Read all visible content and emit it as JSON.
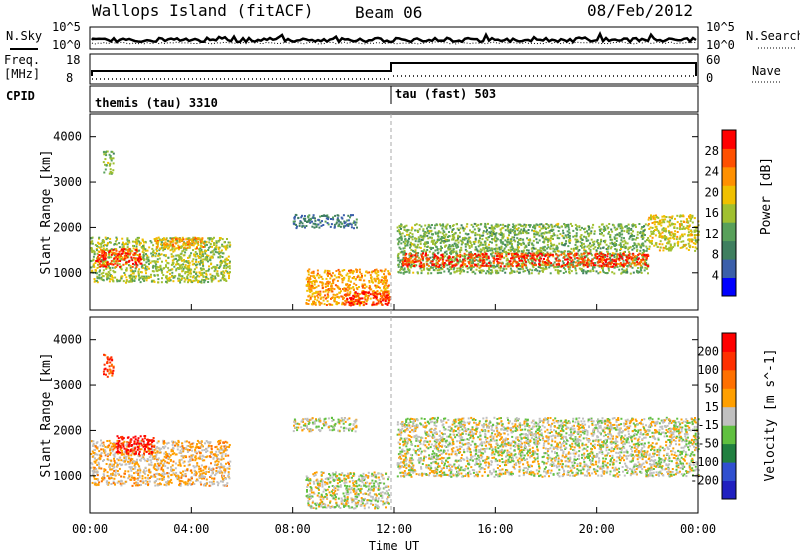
{
  "header": {
    "station": "Wallops Island (fitACF)",
    "beam": "Beam 06",
    "date": "08/Feb/2012"
  },
  "strip_labels": {
    "nsky": "N.Sky",
    "nsearch": "N.Search",
    "freq_line1": "Freq.",
    "freq_line2": "[MHz]",
    "nave": "Nave",
    "cpid": "CPID",
    "sky_ticks": [
      "10^5",
      "10^0"
    ],
    "search_ticks": [
      "10^5",
      "10^0"
    ],
    "freq_ticks": [
      "18",
      "8"
    ],
    "nave_ticks": [
      "60",
      "0"
    ]
  },
  "cpid_modes": [
    {
      "label": "themis (tau) 3310",
      "start_hour": 0
    },
    {
      "label": "tau (fast) 503",
      "start_hour": 12
    }
  ],
  "colors": {
    "power": [
      "#0000ff",
      "#3b5faa",
      "#3f7f5f",
      "#58a05a",
      "#a0c030",
      "#f0c000",
      "#ff9000",
      "#ff5000",
      "#ff0000"
    ],
    "velocity": [
      "#2020c0",
      "#3050d0",
      "#208040",
      "#60c040",
      "#c0c0c0",
      "#ff9f00",
      "#ff7000",
      "#ff3000",
      "#ff0000"
    ]
  },
  "chart_data": [
    {
      "type": "heatmap",
      "id": "power",
      "xlabel": "",
      "ylabel": "Slant Range [km]",
      "xlim": [
        0,
        24
      ],
      "ylim": [
        180,
        4500
      ],
      "yticks": [
        1000,
        2000,
        3000,
        4000
      ],
      "colorbar": {
        "label": "Power [dB]",
        "ticks": [
          4,
          8,
          12,
          16,
          20,
          24,
          28
        ],
        "range": [
          0,
          32
        ]
      },
      "regions": [
        {
          "t0": 0.0,
          "t1": 5.5,
          "r0": 800,
          "r1": 1800,
          "value": 16
        },
        {
          "t0": 0.2,
          "t1": 2.0,
          "r0": 1150,
          "r1": 1550,
          "value": 28
        },
        {
          "t0": 2.5,
          "t1": 4.5,
          "r0": 1550,
          "r1": 1800,
          "value": 22
        },
        {
          "t0": 0.5,
          "t1": 0.9,
          "r0": 3200,
          "r1": 3700,
          "value": 14
        },
        {
          "t0": 8.0,
          "t1": 10.5,
          "r0": 2000,
          "r1": 2300,
          "value": 8
        },
        {
          "t0": 8.5,
          "t1": 11.8,
          "r0": 300,
          "r1": 1100,
          "value": 22
        },
        {
          "t0": 10.0,
          "t1": 11.8,
          "r0": 300,
          "r1": 600,
          "value": 30
        },
        {
          "t0": 12.1,
          "t1": 22.0,
          "r0": 1000,
          "r1": 2100,
          "value": 14
        },
        {
          "t0": 12.3,
          "t1": 22.0,
          "r0": 1150,
          "r1": 1450,
          "value": 28
        },
        {
          "t0": 22.0,
          "t1": 24.0,
          "r0": 1500,
          "r1": 2300,
          "value": 18
        }
      ]
    },
    {
      "type": "heatmap",
      "id": "velocity",
      "xlabel": "Time UT",
      "ylabel": "Slant Range [km]",
      "xlim": [
        0,
        24
      ],
      "ylim": [
        180,
        4500
      ],
      "yticks": [
        1000,
        2000,
        3000,
        4000
      ],
      "xticks": [
        "00:00",
        "04:00",
        "08:00",
        "12:00",
        "16:00",
        "20:00",
        "00:00"
      ],
      "colorbar": {
        "label": "Velocity [m s^-1]",
        "ticks": [
          200,
          100,
          50,
          15,
          -15,
          -50,
          -100,
          -200
        ],
        "range": [
          -250,
          250
        ]
      },
      "regions": [
        {
          "t0": 0.0,
          "t1": 5.5,
          "r0": 800,
          "r1": 1800,
          "value": 40
        },
        {
          "t0": 1.0,
          "t1": 2.5,
          "r0": 1500,
          "r1": 1900,
          "value": 220
        },
        {
          "t0": 0.5,
          "t1": 0.9,
          "r0": 3200,
          "r1": 3700,
          "value": 150
        },
        {
          "t0": 8.0,
          "t1": 10.5,
          "r0": 2000,
          "r1": 2300,
          "value": 0
        },
        {
          "t0": 8.5,
          "t1": 11.8,
          "r0": 300,
          "r1": 1100,
          "value": 0
        },
        {
          "t0": 12.1,
          "t1": 24.0,
          "r0": 1000,
          "r1": 2300,
          "value": 0
        }
      ]
    }
  ]
}
